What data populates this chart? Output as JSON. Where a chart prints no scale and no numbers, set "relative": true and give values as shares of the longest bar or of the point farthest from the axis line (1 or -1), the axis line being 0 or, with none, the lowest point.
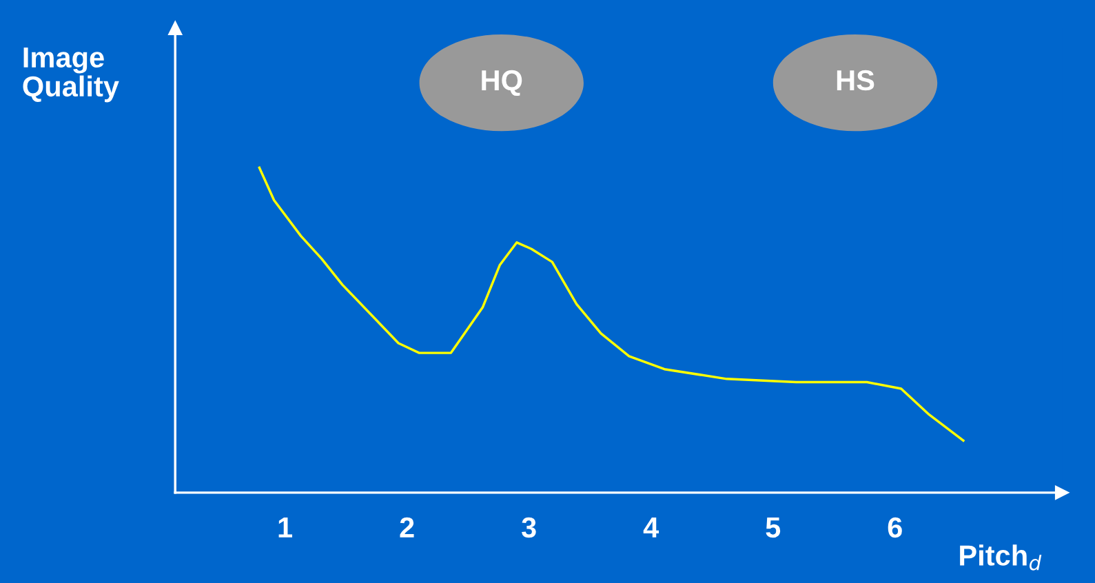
{
  "chart_data": {
    "type": "line",
    "relative": true,
    "xlabel": "Pitch$_{d}$",
    "ylabel": "Image\nQuality",
    "xlim": [
      0.1,
      7.37
    ],
    "xticks": [
      1,
      2,
      3,
      4,
      5,
      6
    ],
    "grid": false,
    "legend": false,
    "marker": "none",
    "line_style": "solid",
    "tick_labels": "x",
    "annotations": [
      "HQ",
      "HS"
    ],
    "series": [
      {
        "color": "#ffff00",
        "x": [
          0.79,
          0.91,
          1.13,
          1.3,
          1.47,
          1.7,
          1.93,
          2.1,
          2.36,
          2.62,
          2.76,
          2.9,
          3.02,
          3.19,
          3.39,
          3.59,
          3.82,
          4.11,
          4.62,
          5.19,
          5.77,
          6.05,
          6.28,
          6.56
        ],
        "values": [
          1.0,
          0.9,
          0.79,
          0.72,
          0.64,
          0.55,
          0.46,
          0.43,
          0.43,
          0.57,
          0.7,
          0.77,
          0.75,
          0.71,
          0.58,
          0.49,
          0.42,
          0.38,
          0.35,
          0.34,
          0.34,
          0.32,
          0.24,
          0.16
        ]
      }
    ]
  }
}
